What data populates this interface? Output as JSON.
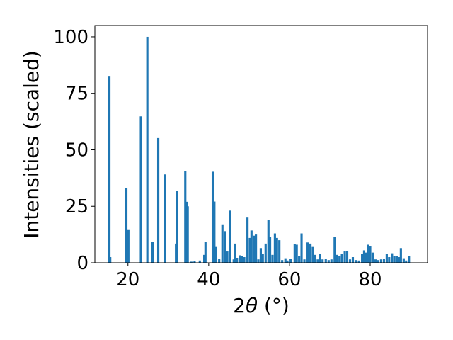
{
  "chart_data": {
    "type": "bar",
    "title": "",
    "xlabel_parts": {
      "two": "2",
      "theta": "θ",
      "unit": " (°)"
    },
    "ylabel": "Intensities (scaled)",
    "xlim": [
      11.8,
      94.2
    ],
    "ylim": [
      0,
      105
    ],
    "xticks": [
      20,
      40,
      60,
      80
    ],
    "yticks": [
      0,
      25,
      50,
      75,
      100
    ],
    "bar_color": "#1f77b4",
    "bar_width_deg": 0.55,
    "points": [
      [
        15.4,
        82.7
      ],
      [
        15.6,
        2.5
      ],
      [
        19.6,
        33.0
      ],
      [
        20.1,
        14.5
      ],
      [
        23.2,
        64.8
      ],
      [
        24.8,
        100.0
      ],
      [
        26.1,
        9.2
      ],
      [
        27.5,
        55.2
      ],
      [
        29.2,
        39.1
      ],
      [
        31.9,
        8.5
      ],
      [
        32.2,
        31.9
      ],
      [
        34.2,
        40.5
      ],
      [
        34.5,
        27.0
      ],
      [
        34.8,
        25.0
      ],
      [
        35.7,
        0.5
      ],
      [
        36.5,
        0.7
      ],
      [
        37.8,
        1.0
      ],
      [
        38.9,
        3.5
      ],
      [
        39.2,
        9.2
      ],
      [
        41.0,
        40.3
      ],
      [
        41.4,
        27.1
      ],
      [
        41.8,
        7.0
      ],
      [
        42.6,
        1.8
      ],
      [
        43.4,
        17.0
      ],
      [
        44.0,
        14.0
      ],
      [
        44.6,
        5.0
      ],
      [
        45.3,
        23.1
      ],
      [
        46.2,
        1.5
      ],
      [
        46.5,
        8.5
      ],
      [
        47.0,
        2.2
      ],
      [
        47.7,
        3.3
      ],
      [
        48.3,
        3.0
      ],
      [
        48.8,
        2.5
      ],
      [
        49.6,
        20.0
      ],
      [
        50.2,
        11.0
      ],
      [
        50.6,
        14.3
      ],
      [
        51.2,
        12.0
      ],
      [
        51.7,
        12.5
      ],
      [
        52.3,
        1.5
      ],
      [
        52.9,
        6.5
      ],
      [
        53.4,
        4.0
      ],
      [
        54.1,
        8.5
      ],
      [
        54.8,
        19.0
      ],
      [
        55.2,
        11.5
      ],
      [
        55.8,
        3.5
      ],
      [
        56.4,
        13.0
      ],
      [
        56.9,
        11.0
      ],
      [
        57.5,
        10.0
      ],
      [
        58.2,
        1.2
      ],
      [
        59.0,
        2.0
      ],
      [
        59.5,
        1.0
      ],
      [
        60.3,
        1.8
      ],
      [
        61.3,
        8.2
      ],
      [
        61.8,
        8.0
      ],
      [
        62.4,
        3.0
      ],
      [
        63.0,
        13.0
      ],
      [
        63.7,
        1.5
      ],
      [
        64.5,
        9.0
      ],
      [
        65.2,
        8.5
      ],
      [
        65.8,
        7.0
      ],
      [
        66.4,
        3.5
      ],
      [
        67.0,
        1.5
      ],
      [
        67.6,
        4.0
      ],
      [
        68.2,
        1.5
      ],
      [
        69.0,
        1.8
      ],
      [
        69.7,
        1.2
      ],
      [
        70.4,
        1.5
      ],
      [
        71.2,
        11.5
      ],
      [
        71.8,
        3.5
      ],
      [
        72.4,
        3.0
      ],
      [
        73.0,
        4.0
      ],
      [
        73.7,
        5.0
      ],
      [
        74.3,
        5.3
      ],
      [
        75.0,
        1.5
      ],
      [
        75.7,
        2.5
      ],
      [
        76.4,
        1.2
      ],
      [
        77.2,
        1.0
      ],
      [
        78.0,
        3.8
      ],
      [
        78.5,
        5.5
      ],
      [
        79.0,
        4.5
      ],
      [
        79.5,
        8.0
      ],
      [
        80.0,
        7.2
      ],
      [
        80.6,
        4.5
      ],
      [
        81.3,
        1.5
      ],
      [
        82.0,
        1.2
      ],
      [
        82.7,
        1.5
      ],
      [
        83.4,
        1.8
      ],
      [
        84.1,
        4.0
      ],
      [
        84.7,
        2.5
      ],
      [
        85.4,
        4.2
      ],
      [
        86.0,
        3.0
      ],
      [
        86.6,
        3.0
      ],
      [
        87.1,
        2.5
      ],
      [
        87.6,
        6.5
      ],
      [
        88.3,
        2.0
      ],
      [
        88.9,
        1.0
      ],
      [
        89.6,
        3.0
      ]
    ]
  }
}
